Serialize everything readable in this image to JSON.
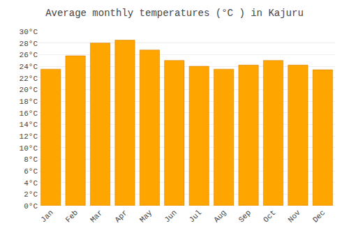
{
  "chart_data": {
    "type": "bar",
    "title": "Average monthly temperatures (°C ) in Kajuru",
    "categories": [
      "Jan",
      "Feb",
      "Mar",
      "Apr",
      "May",
      "Jun",
      "Jul",
      "Aug",
      "Sep",
      "Oct",
      "Nov",
      "Dec"
    ],
    "values": [
      23.5,
      25.8,
      28.0,
      28.5,
      26.8,
      25.0,
      24.0,
      23.5,
      24.2,
      25.0,
      24.2,
      23.4
    ],
    "color": "#FFA500",
    "ylim": [
      0,
      30
    ],
    "yticks": [
      {
        "value": 0,
        "label": "0°C"
      },
      {
        "value": 2,
        "label": "2°C"
      },
      {
        "value": 4,
        "label": "4°C"
      },
      {
        "value": 6,
        "label": "6°C"
      },
      {
        "value": 8,
        "label": "8°C"
      },
      {
        "value": 10,
        "label": "10°C"
      },
      {
        "value": 12,
        "label": "12°C"
      },
      {
        "value": 14,
        "label": "14°C"
      },
      {
        "value": 16,
        "label": "16°C"
      },
      {
        "value": 18,
        "label": "18°C"
      },
      {
        "value": 20,
        "label": "20°C"
      },
      {
        "value": 22,
        "label": "22°C"
      },
      {
        "value": 24,
        "label": "24°C"
      },
      {
        "value": 26,
        "label": "26°C"
      },
      {
        "value": 28,
        "label": "28°C"
      },
      {
        "value": 30,
        "label": "30°C"
      }
    ],
    "grid": true
  }
}
